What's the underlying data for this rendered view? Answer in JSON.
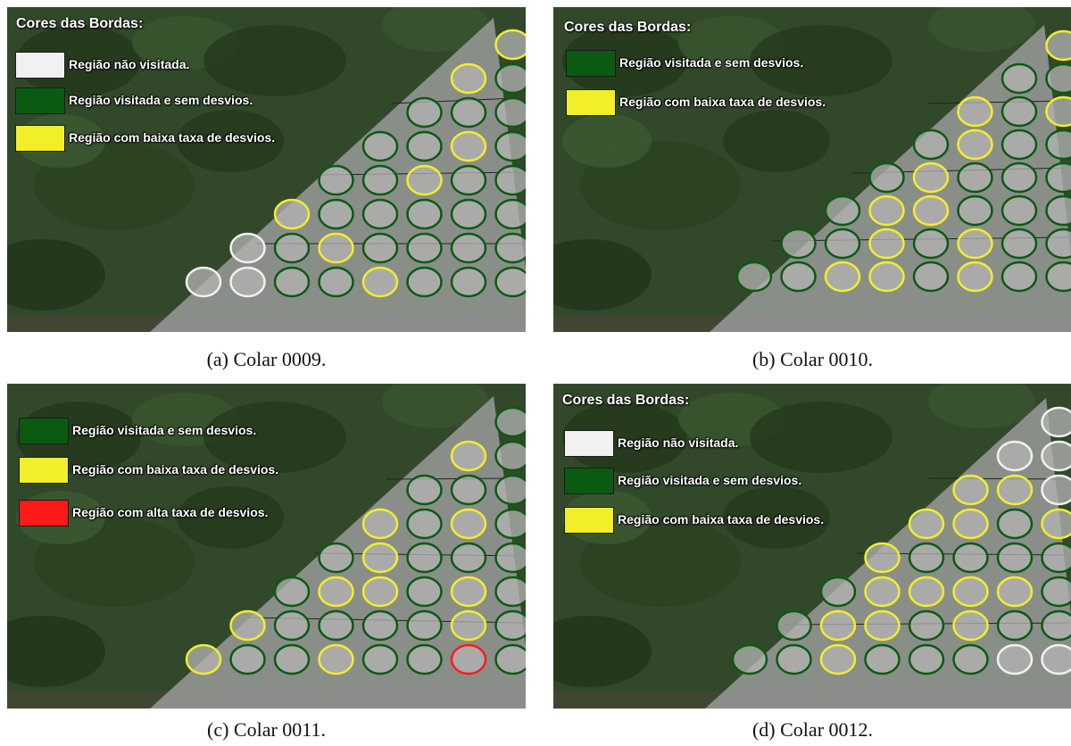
{
  "colors": {
    "white": "#f1f1f1",
    "green": "#0b5a12",
    "yellow": "#f2ee2a",
    "red": "#ff1a1a"
  },
  "panels": [
    {
      "caption": "(a) Colar 0009.",
      "legend_title": "Cores das Bordas:",
      "legend": [
        {
          "color": "white",
          "label": "Região não visitada."
        },
        {
          "color": "green",
          "label": "Região visitada e sem desvios."
        },
        {
          "color": "yellow",
          "label": "Região com baixa taxa de desvios."
        }
      ],
      "rows": [
        [
          "yellow"
        ],
        [
          "yellow",
          "green"
        ],
        [
          "green",
          "green",
          "green"
        ],
        [
          "green",
          "green",
          "yellow",
          "green"
        ],
        [
          "green",
          "green",
          "yellow",
          "green",
          "green"
        ],
        [
          "yellow",
          "green",
          "green",
          "green",
          "green",
          "green"
        ],
        [
          "white",
          "green",
          "yellow",
          "green",
          "green",
          "green",
          "green"
        ],
        [
          "white",
          "white",
          "green",
          "green",
          "yellow",
          "green",
          "green",
          "green"
        ]
      ]
    },
    {
      "caption": "(b) Colar 0010.",
      "legend_title": "Cores das Bordas:",
      "legend": [
        {
          "color": "green",
          "label": "Região visitada e sem desvios."
        },
        {
          "color": "yellow",
          "label": "Região com baixa taxa de desvios."
        }
      ],
      "rows": [
        [
          "yellow"
        ],
        [
          "green",
          "green"
        ],
        [
          "yellow",
          "green",
          "yellow"
        ],
        [
          "green",
          "yellow",
          "green",
          "green"
        ],
        [
          "green",
          "yellow",
          "green",
          "green",
          "green"
        ],
        [
          "green",
          "yellow",
          "yellow",
          "green",
          "green",
          "green"
        ],
        [
          "green",
          "green",
          "yellow",
          "green",
          "yellow",
          "green",
          "green"
        ],
        [
          "green",
          "green",
          "yellow",
          "yellow",
          "green",
          "yellow",
          "green",
          "green"
        ]
      ]
    },
    {
      "caption": "(c) Colar 0011.",
      "legend_title": "",
      "legend": [
        {
          "color": "green",
          "label": "Região visitada e sem desvios."
        },
        {
          "color": "yellow",
          "label": "Região com baixa taxa de desvios."
        },
        {
          "color": "red",
          "label": "Região com alta taxa de desvios."
        }
      ],
      "rows": [
        [
          "green"
        ],
        [
          "yellow",
          "green"
        ],
        [
          "green",
          "green",
          "green"
        ],
        [
          "yellow",
          "green",
          "yellow",
          "green"
        ],
        [
          "green",
          "yellow",
          "green",
          "green",
          "green"
        ],
        [
          "green",
          "yellow",
          "yellow",
          "green",
          "yellow",
          "green"
        ],
        [
          "yellow",
          "green",
          "green",
          "green",
          "green",
          "yellow",
          "green"
        ],
        [
          "yellow",
          "green",
          "green",
          "yellow",
          "green",
          "green",
          "red",
          "green"
        ]
      ]
    },
    {
      "caption": "(d) Colar 0012.",
      "legend_title": "Cores das Bordas:",
      "legend": [
        {
          "color": "white",
          "label": "Região não visitada."
        },
        {
          "color": "green",
          "label": "Região visitada e sem desvios."
        },
        {
          "color": "yellow",
          "label": "Região com baixa taxa de desvios."
        }
      ],
      "rows": [
        [
          "white"
        ],
        [
          "white",
          "white"
        ],
        [
          "yellow",
          "yellow",
          "white"
        ],
        [
          "yellow",
          "yellow",
          "green",
          "yellow"
        ],
        [
          "yellow",
          "green",
          "green",
          "green",
          "green"
        ],
        [
          "green",
          "yellow",
          "yellow",
          "yellow",
          "yellow",
          "green"
        ],
        [
          "green",
          "yellow",
          "yellow",
          "green",
          "yellow",
          "green",
          "green"
        ],
        [
          "green",
          "green",
          "yellow",
          "green",
          "green",
          "green",
          "white",
          "white"
        ]
      ]
    }
  ]
}
